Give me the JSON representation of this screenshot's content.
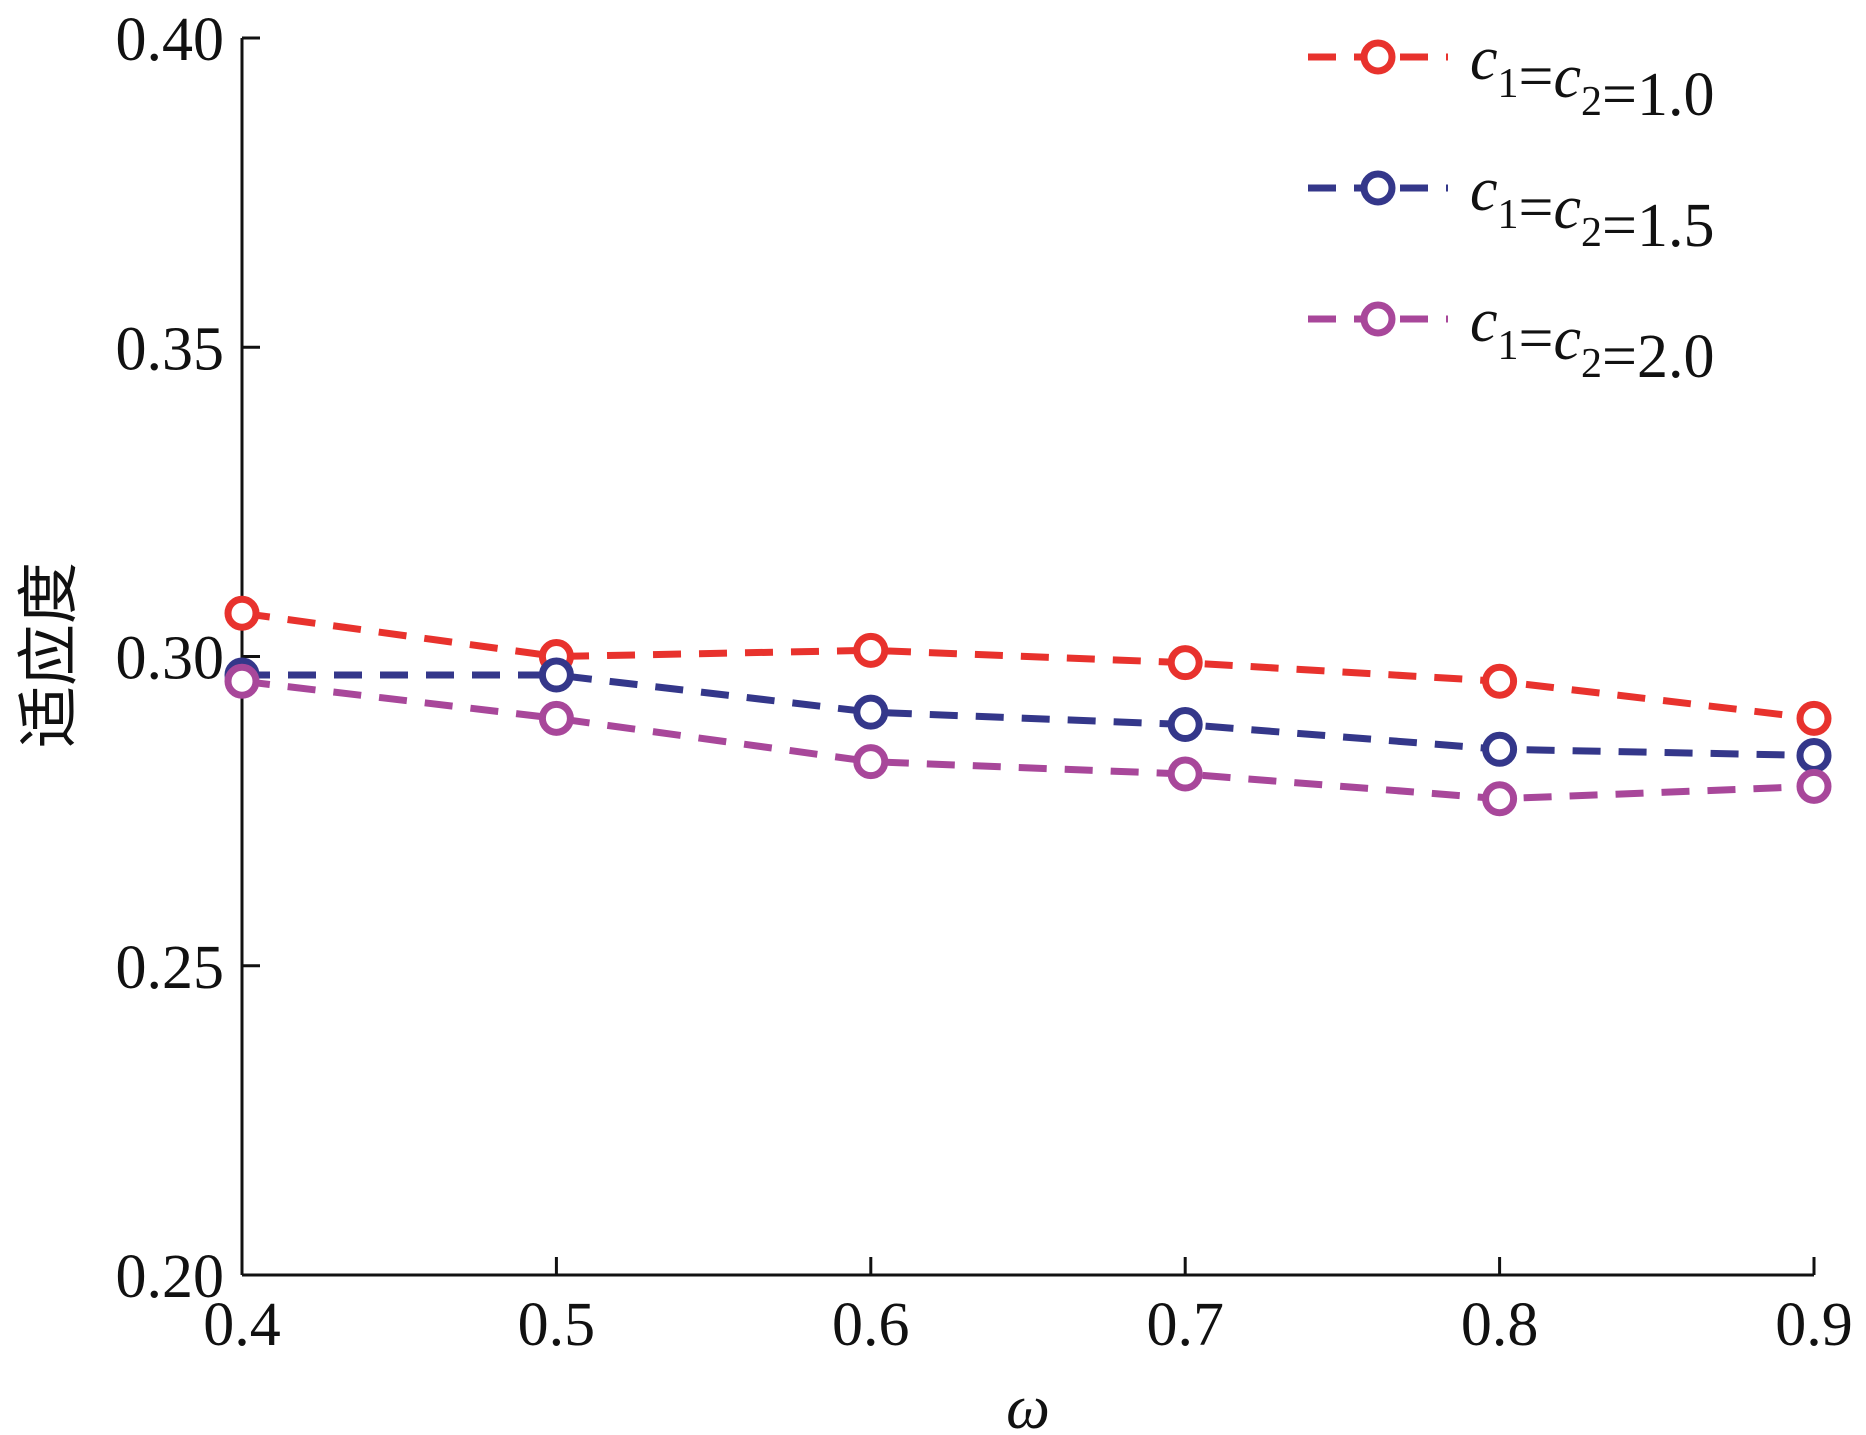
{
  "chart_data": {
    "type": "line",
    "xlabel": "ω",
    "ylabel": "适应度",
    "x": [
      0.4,
      0.5,
      0.6,
      0.7,
      0.8,
      0.9
    ],
    "x_tick_labels": [
      "0.4",
      "0.5",
      "0.6",
      "0.7",
      "0.8",
      "0.9"
    ],
    "y_tick_values": [
      0.2,
      0.25,
      0.3,
      0.35,
      0.4
    ],
    "y_tick_labels": [
      "0.20",
      "0.25",
      "0.30",
      "0.35",
      "0.40"
    ],
    "xlim": [
      0.4,
      0.9
    ],
    "ylim": [
      0.2,
      0.4
    ],
    "grid": false,
    "legend_position": "top-right",
    "series": [
      {
        "name": "c1=c2=1.0",
        "color": "#e8322d",
        "values": [
          0.307,
          0.3,
          0.301,
          0.299,
          0.296,
          0.29
        ]
      },
      {
        "name": "c1=c2=1.5",
        "color": "#34378a",
        "values": [
          0.297,
          0.297,
          0.291,
          0.289,
          0.285,
          0.284
        ]
      },
      {
        "name": "c1=c2=2.0",
        "color": "#a8479a",
        "values": [
          0.296,
          0.29,
          0.283,
          0.281,
          0.277,
          0.279
        ]
      }
    ]
  }
}
